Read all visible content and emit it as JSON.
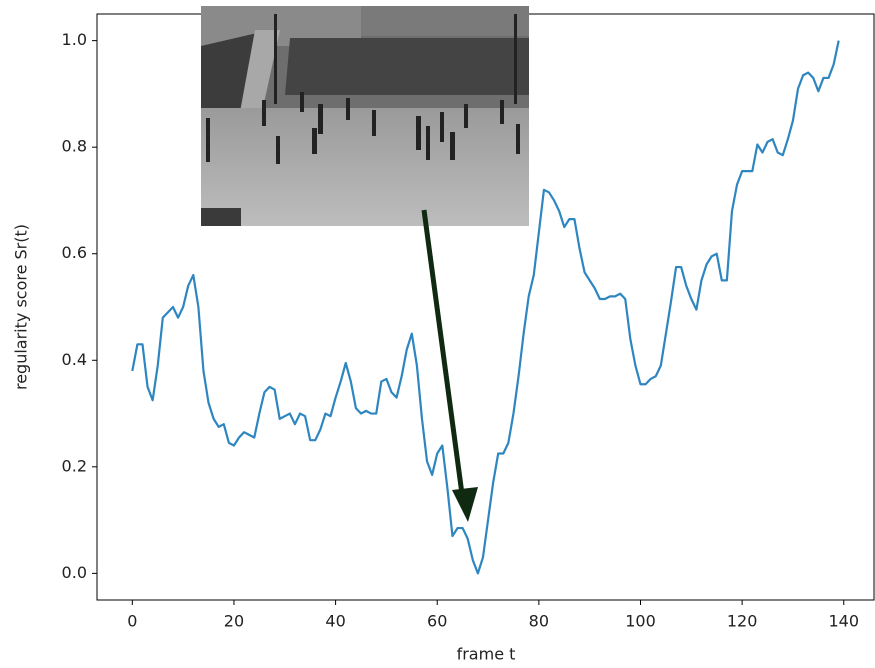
{
  "chart_data": {
    "type": "line",
    "x_label": "frame t",
    "y_label": "regularity score Sr(t)",
    "x": [
      0,
      1,
      2,
      3,
      4,
      5,
      6,
      7,
      8,
      9,
      10,
      11,
      12,
      13,
      14,
      15,
      16,
      17,
      18,
      19,
      20,
      21,
      22,
      23,
      24,
      25,
      26,
      27,
      28,
      29,
      30,
      31,
      32,
      33,
      34,
      35,
      36,
      37,
      38,
      39,
      40,
      41,
      42,
      43,
      44,
      45,
      46,
      47,
      48,
      49,
      50,
      51,
      52,
      53,
      54,
      55,
      56,
      57,
      58,
      59,
      60,
      61,
      62,
      63,
      64,
      65,
      66,
      67,
      68,
      69,
      70,
      71,
      72,
      73,
      74,
      75,
      76,
      77,
      78,
      79,
      80,
      81,
      82,
      83,
      84,
      85,
      86,
      87,
      88,
      89,
      90,
      91,
      92,
      93,
      94,
      95,
      96,
      97,
      98,
      99,
      100,
      101,
      102,
      103,
      104,
      105,
      106,
      107,
      108,
      109,
      110,
      111,
      112,
      113,
      114,
      115,
      116,
      117,
      118,
      119,
      120,
      121,
      122,
      123,
      124,
      125,
      126,
      127,
      128,
      129,
      130,
      131,
      132,
      133,
      134,
      135,
      136,
      137,
      138,
      139
    ],
    "values": [
      0.38,
      0.43,
      0.43,
      0.35,
      0.325,
      0.39,
      0.48,
      0.49,
      0.5,
      0.48,
      0.5,
      0.54,
      0.56,
      0.5,
      0.38,
      0.32,
      0.29,
      0.275,
      0.28,
      0.245,
      0.24,
      0.255,
      0.265,
      0.26,
      0.255,
      0.3,
      0.34,
      0.35,
      0.345,
      0.29,
      0.295,
      0.3,
      0.28,
      0.3,
      0.295,
      0.25,
      0.25,
      0.27,
      0.3,
      0.295,
      0.33,
      0.36,
      0.395,
      0.36,
      0.31,
      0.3,
      0.305,
      0.3,
      0.3,
      0.36,
      0.365,
      0.34,
      0.33,
      0.37,
      0.42,
      0.45,
      0.39,
      0.29,
      0.21,
      0.185,
      0.225,
      0.24,
      0.16,
      0.07,
      0.085,
      0.085,
      0.065,
      0.025,
      0.0,
      0.03,
      0.1,
      0.17,
      0.225,
      0.225,
      0.245,
      0.3,
      0.37,
      0.45,
      0.52,
      0.56,
      0.64,
      0.72,
      0.715,
      0.7,
      0.68,
      0.65,
      0.665,
      0.665,
      0.61,
      0.565,
      0.55,
      0.535,
      0.515,
      0.515,
      0.52,
      0.52,
      0.525,
      0.515,
      0.44,
      0.39,
      0.355,
      0.355,
      0.365,
      0.37,
      0.39,
      0.45,
      0.51,
      0.575,
      0.575,
      0.54,
      0.515,
      0.495,
      0.55,
      0.58,
      0.595,
      0.6,
      0.55,
      0.55,
      0.68,
      0.73,
      0.755,
      0.755,
      0.755,
      0.805,
      0.79,
      0.81,
      0.815,
      0.79,
      0.785,
      0.815,
      0.85,
      0.91,
      0.935,
      0.94,
      0.93,
      0.905,
      0.93,
      0.93,
      0.955,
      1.0
    ],
    "color": "#2e86c1",
    "xlim": [
      -6.95,
      145.95
    ],
    "xticks": [
      0,
      20,
      40,
      60,
      80,
      100,
      120,
      140
    ],
    "ylim": [
      -0.05,
      1.05
    ],
    "yticks": [
      {
        "value": 0,
        "label": "0.0"
      },
      0.2,
      0.4,
      0.6,
      0.8,
      {
        "value": 1,
        "label": "1.0"
      }
    ],
    "grid": false
  }
}
